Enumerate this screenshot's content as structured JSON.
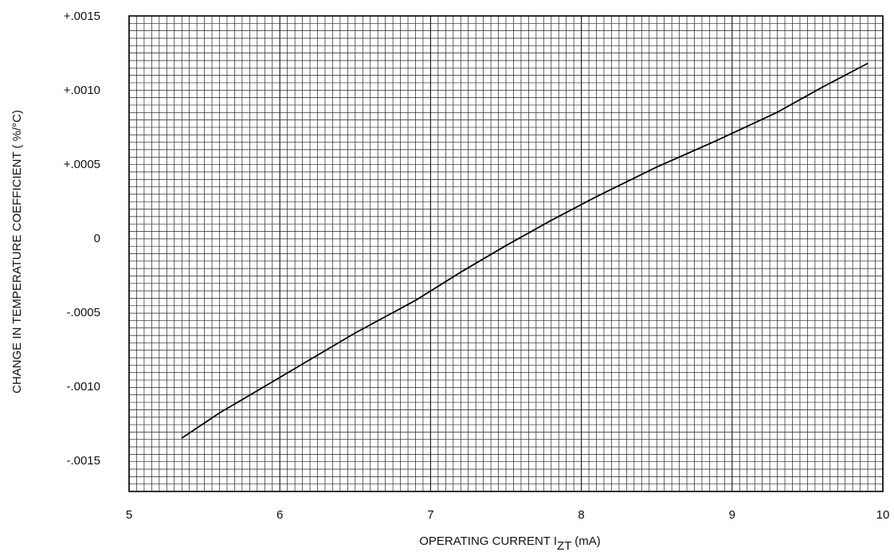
{
  "chart_data": {
    "type": "line",
    "title": "",
    "xlabel": "OPERATING CURRENT I",
    "xlabel_subscript": "ZT",
    "xlabel_unit": " (mA)",
    "ylabel": "CHANGE IN TEMPERATURE COEFFICIENT ( %/°C)",
    "xlim": [
      5,
      10
    ],
    "ylim": [
      -0.00171,
      0.0015
    ],
    "grid": true,
    "x_ticks": [
      5,
      6,
      7,
      8,
      9,
      10
    ],
    "x_tick_labels": [
      "5",
      "6",
      "7",
      "8",
      "9",
      "10"
    ],
    "y_ticks": [
      0.0015,
      0.001,
      0.0005,
      0,
      -0.0005,
      -0.001,
      -0.0015
    ],
    "y_tick_labels": [
      "+.0015",
      "+.0010",
      "+.0005",
      "0",
      "-.0005",
      "-.0010",
      "-.0015"
    ],
    "series": [
      {
        "x": [
          5.35,
          5.6,
          5.9,
          6.2,
          6.5,
          6.9,
          7.2,
          7.5,
          7.8,
          8.1,
          8.5,
          8.9,
          9.3,
          9.6,
          9.9
        ],
        "y": [
          -0.00135,
          -0.00118,
          -0.001,
          -0.00082,
          -0.00064,
          -0.00042,
          -0.00023,
          -5e-05,
          0.00012,
          0.00028,
          0.00048,
          0.00066,
          0.00085,
          0.00102,
          0.00118
        ]
      }
    ]
  },
  "colors": {
    "grid": "#222222",
    "line": "#000000",
    "frame": "#000000"
  }
}
